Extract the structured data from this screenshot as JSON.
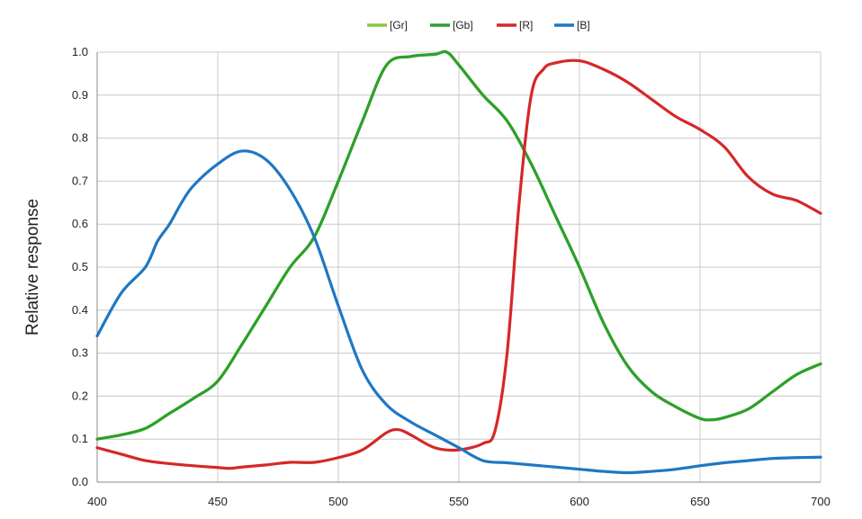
{
  "chart_data": {
    "type": "line",
    "title": "",
    "xlabel": "",
    "ylabel": "Relative response",
    "xlim": [
      400,
      700
    ],
    "ylim": [
      0,
      1.0
    ],
    "x_ticks": [
      400,
      450,
      500,
      550,
      600,
      650,
      700
    ],
    "x_tick_labels": [
      "400",
      "450",
      "500",
      "550",
      "600",
      "650",
      "700"
    ],
    "y_ticks": [
      0,
      0.1,
      0.2,
      0.3,
      0.4,
      0.5,
      0.6,
      0.7,
      0.8,
      0.9,
      1.0
    ],
    "y_tick_labels": [
      "0.0",
      "0.1",
      "0.2",
      "0.3",
      "0.4",
      "0.5",
      "0.6",
      "0.7",
      "0.8",
      "0.9",
      "1.0"
    ],
    "grid": true,
    "legend_position": "top-center",
    "series": [
      {
        "name": "[Gr]",
        "color": "#8cc63f",
        "x": [
          400,
          410,
          420,
          430,
          440,
          450,
          460,
          470,
          480,
          490,
          500,
          510,
          520,
          530,
          540,
          545,
          550,
          560,
          570,
          580,
          590,
          600,
          610,
          620,
          630,
          640,
          650,
          655,
          660,
          670,
          680,
          690,
          700
        ],
        "y": [
          0.1,
          0.11,
          0.125,
          0.16,
          0.195,
          0.235,
          0.32,
          0.41,
          0.5,
          0.57,
          0.7,
          0.84,
          0.97,
          0.99,
          0.995,
          1.0,
          0.97,
          0.9,
          0.84,
          0.74,
          0.62,
          0.5,
          0.37,
          0.27,
          0.21,
          0.175,
          0.148,
          0.145,
          0.15,
          0.17,
          0.21,
          0.25,
          0.275
        ]
      },
      {
        "name": "[Gb]",
        "color": "#2ca02c",
        "x": [
          400,
          410,
          420,
          430,
          440,
          450,
          460,
          470,
          480,
          490,
          500,
          510,
          520,
          530,
          540,
          545,
          550,
          560,
          570,
          580,
          590,
          600,
          610,
          620,
          630,
          640,
          650,
          655,
          660,
          670,
          680,
          690,
          700
        ],
        "y": [
          0.1,
          0.11,
          0.125,
          0.16,
          0.195,
          0.235,
          0.32,
          0.41,
          0.5,
          0.57,
          0.7,
          0.84,
          0.97,
          0.99,
          0.995,
          1.0,
          0.97,
          0.9,
          0.84,
          0.74,
          0.62,
          0.5,
          0.37,
          0.27,
          0.21,
          0.175,
          0.148,
          0.145,
          0.15,
          0.17,
          0.21,
          0.25,
          0.275
        ]
      },
      {
        "name": "[R]",
        "color": "#d62728",
        "x": [
          400,
          410,
          420,
          430,
          440,
          450,
          455,
          460,
          470,
          480,
          490,
          500,
          510,
          520,
          525,
          530,
          540,
          550,
          560,
          565,
          570,
          575,
          580,
          585,
          590,
          600,
          610,
          620,
          630,
          640,
          650,
          660,
          670,
          680,
          690,
          700
        ],
        "y": [
          0.08,
          0.065,
          0.05,
          0.043,
          0.038,
          0.034,
          0.032,
          0.035,
          0.04,
          0.046,
          0.046,
          0.057,
          0.075,
          0.115,
          0.122,
          0.11,
          0.08,
          0.075,
          0.09,
          0.12,
          0.3,
          0.65,
          0.9,
          0.96,
          0.975,
          0.98,
          0.96,
          0.93,
          0.89,
          0.85,
          0.82,
          0.78,
          0.71,
          0.67,
          0.655,
          0.625
        ]
      },
      {
        "name": "[B]",
        "color": "#1f77c4",
        "x": [
          400,
          410,
          420,
          425,
          430,
          435,
          440,
          450,
          460,
          470,
          480,
          490,
          500,
          510,
          520,
          530,
          540,
          550,
          560,
          570,
          580,
          590,
          600,
          610,
          620,
          630,
          640,
          650,
          660,
          670,
          680,
          690,
          700
        ],
        "y": [
          0.34,
          0.44,
          0.5,
          0.56,
          0.6,
          0.65,
          0.69,
          0.74,
          0.77,
          0.75,
          0.68,
          0.57,
          0.41,
          0.26,
          0.18,
          0.14,
          0.11,
          0.08,
          0.05,
          0.045,
          0.04,
          0.035,
          0.03,
          0.025,
          0.022,
          0.025,
          0.03,
          0.038,
          0.045,
          0.05,
          0.055,
          0.057,
          0.058
        ]
      }
    ]
  }
}
